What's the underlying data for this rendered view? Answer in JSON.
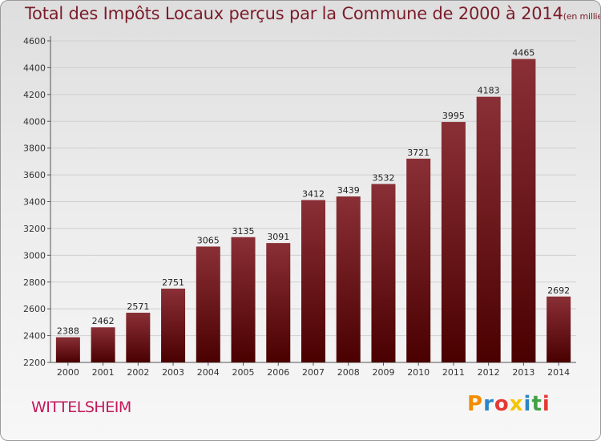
{
  "title": "Total des Impôts Locaux perçus par la Commune de 2000 à 2014",
  "unit_note": "(en milliers d'€)",
  "commune": "WITTELSHEIM",
  "logo": {
    "letters": [
      "P",
      "r",
      "o",
      "x",
      "i",
      "t",
      "i"
    ],
    "colors": [
      "#f28c00",
      "#2b86c5",
      "#e53935",
      "#f6c400",
      "#2b86c5",
      "#43a047",
      "#e53935"
    ]
  },
  "colors": {
    "bar_top": "#8a2f36",
    "bar_bottom": "#4a0000",
    "grid": "#cfcfcf"
  },
  "chart_data": {
    "type": "bar",
    "title": "Total des Impôts Locaux perçus par la Commune de 2000 à 2014",
    "xlabel": "",
    "ylabel": "(en milliers d'€)",
    "ylim": [
      2200,
      4600
    ],
    "yticks": [
      2200,
      2400,
      2600,
      2800,
      3000,
      3200,
      3400,
      3600,
      3800,
      4000,
      4200,
      4400,
      4600
    ],
    "categories": [
      "2000",
      "2001",
      "2002",
      "2003",
      "2004",
      "2005",
      "2006",
      "2007",
      "2008",
      "2009",
      "2010",
      "2011",
      "2012",
      "2013",
      "2014"
    ],
    "values": [
      2388,
      2462,
      2571,
      2751,
      3065,
      3135,
      3091,
      3412,
      3439,
      3532,
      3721,
      3995,
      4183,
      4465,
      2692
    ],
    "grid": true
  }
}
